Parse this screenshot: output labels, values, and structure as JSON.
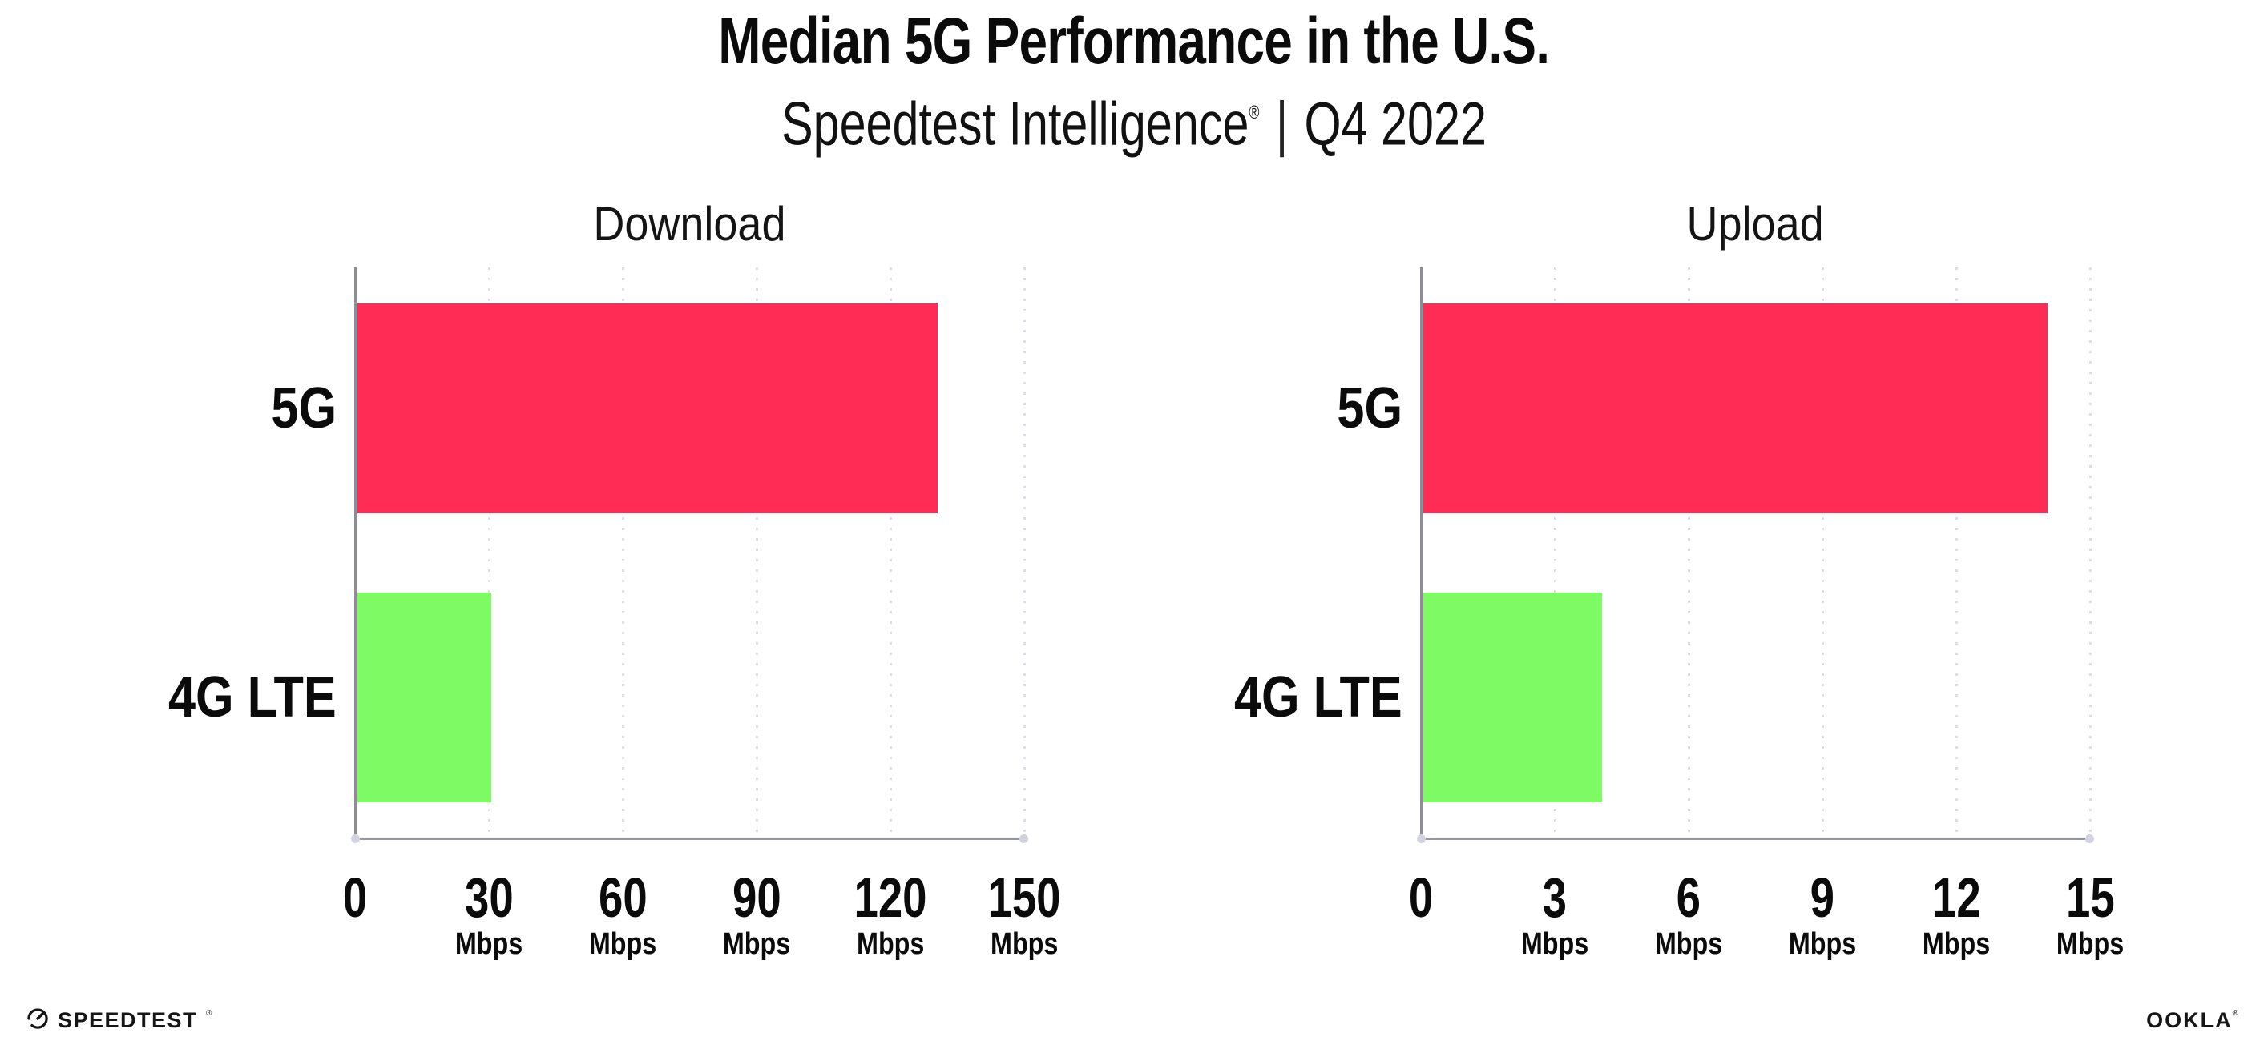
{
  "header": {
    "title": "Median 5G Performance in the U.S.",
    "subtitle": {
      "brand": "Speedtest Intelligence",
      "registered_mark": "®",
      "separator": "|",
      "period": "Q4 2022"
    }
  },
  "chart_data": [
    {
      "type": "bar",
      "orientation": "horizontal",
      "title": "Download",
      "categories": [
        "5G",
        "4G LTE"
      ],
      "values": [
        130,
        30
      ],
      "unit": "Mbps",
      "xlim": [
        0,
        150
      ],
      "xticks": [
        0,
        30,
        60,
        90,
        120,
        150
      ],
      "tick_unit_label": "Mbps",
      "bar_colors": [
        "#FF2D55",
        "#7EFA64"
      ],
      "grid": "vertical-dotted",
      "legend": "none"
    },
    {
      "type": "bar",
      "orientation": "horizontal",
      "title": "Upload",
      "categories": [
        "5G",
        "4G LTE"
      ],
      "values": [
        14,
        4
      ],
      "unit": "Mbps",
      "xlim": [
        0,
        15
      ],
      "xticks": [
        0,
        3,
        6,
        9,
        12,
        15
      ],
      "tick_unit_label": "Mbps",
      "bar_colors": [
        "#FF2D55",
        "#7EFA64"
      ],
      "grid": "vertical-dotted",
      "legend": "none"
    }
  ],
  "footer": {
    "speedtest_logo": {
      "icon": "speedtest-gauge-icon",
      "text": "SPEEDTEST",
      "mark": "®"
    },
    "ookla_logo": {
      "text": "OOKLA",
      "mark": "®"
    }
  },
  "colors": {
    "bar_5g": "#FF2D55",
    "bar_4g_lte": "#7EFA64",
    "axis": "#97979F",
    "grid_dots": "#DEDEE6",
    "text": "#0B0B0C"
  }
}
